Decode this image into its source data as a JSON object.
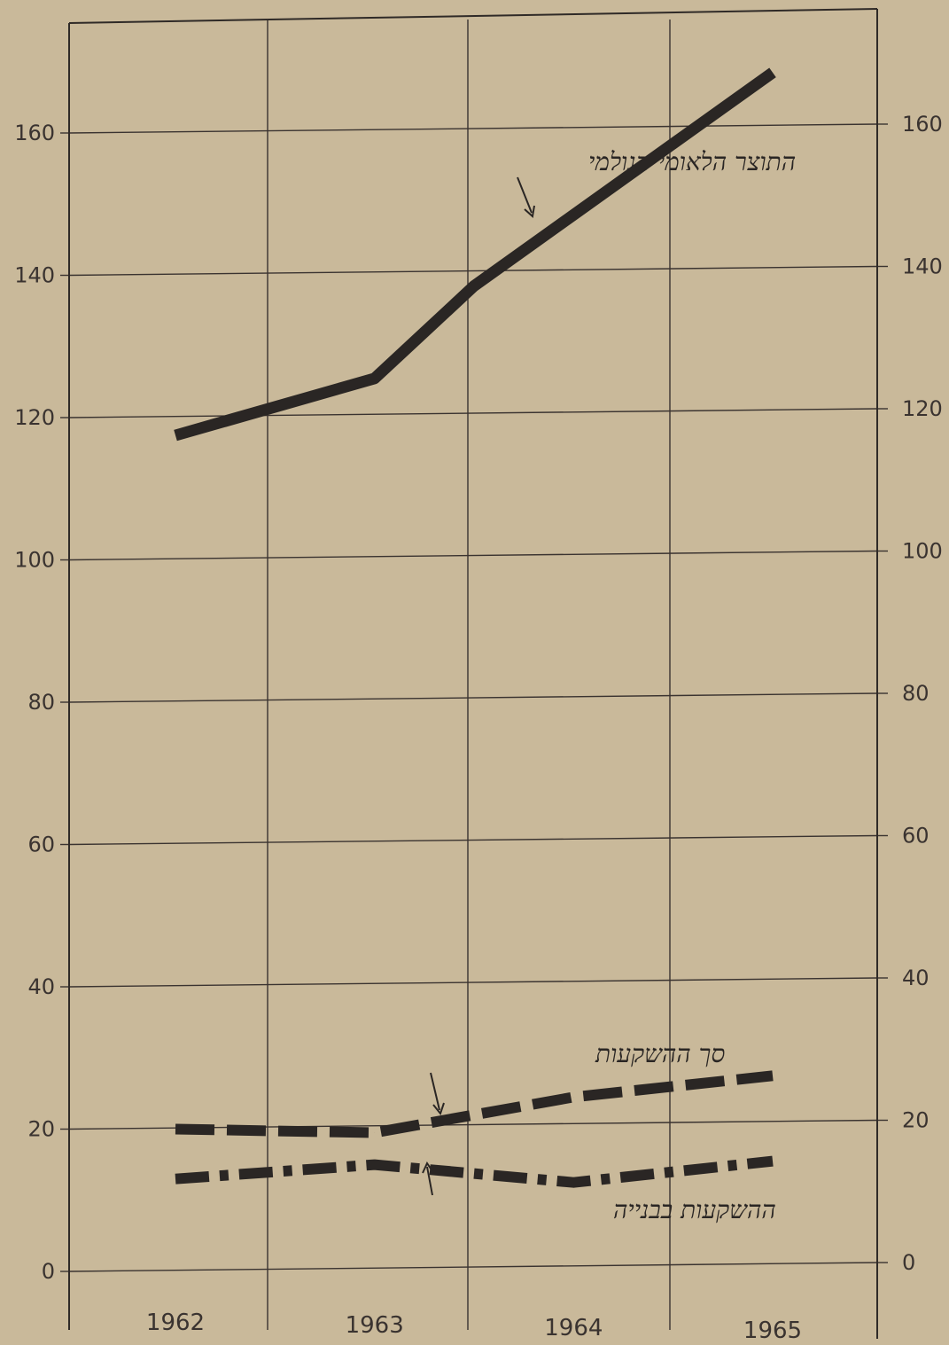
{
  "chart_data": {
    "type": "line",
    "title": "",
    "xlabel": "",
    "ylabel": "",
    "categories": [
      "1962",
      "1963",
      "1964",
      "1965"
    ],
    "ylim": [
      0,
      175
    ],
    "yticks": [
      "0",
      "20",
      "40",
      "60",
      "80",
      "100",
      "120",
      "140",
      "160"
    ],
    "ytick_values": [
      0,
      20,
      40,
      60,
      80,
      100,
      120,
      140,
      160
    ],
    "grid": true,
    "series": [
      {
        "name": "התוצר הלאומי הגולמי",
        "style": "solid",
        "color": "#2a2624",
        "x": [
          1962.0,
          1963.0,
          1963.5,
          1964.0,
          1965.0
        ],
        "values": [
          117.5,
          125.5,
          138.5,
          148.5,
          168.5
        ]
      },
      {
        "name": "סך ההשקעות",
        "style": "dashed",
        "color": "#2a2624",
        "x": [
          1962.0,
          1963.0,
          1964.0,
          1965.0
        ],
        "values": [
          20.0,
          19.5,
          24.5,
          27.5
        ]
      },
      {
        "name": "ההשקעות בבנייה",
        "style": "dashdot",
        "color": "#2a2624",
        "x": [
          1962.0,
          1963.0,
          1964.0,
          1965.0
        ],
        "values": [
          13.0,
          15.0,
          12.5,
          15.5
        ]
      }
    ]
  }
}
